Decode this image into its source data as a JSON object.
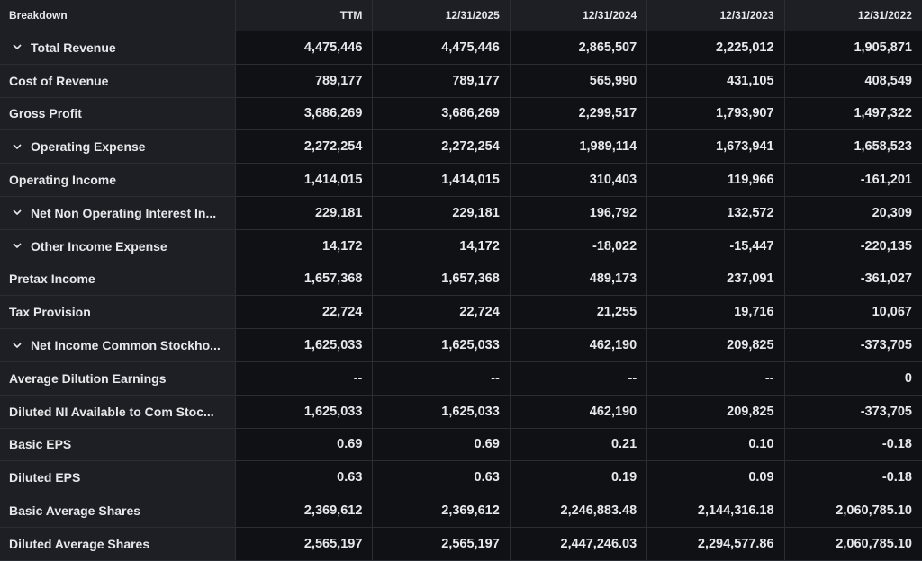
{
  "header": {
    "breakdown": "Breakdown",
    "columns": [
      "TTM",
      "12/31/2025",
      "12/31/2024",
      "12/31/2023",
      "12/31/2022"
    ]
  },
  "rows": [
    {
      "label": "Total Revenue",
      "expandable": true,
      "values": [
        "4,475,446",
        "4,475,446",
        "2,865,507",
        "2,225,012",
        "1,905,871"
      ]
    },
    {
      "label": "Cost of Revenue",
      "expandable": false,
      "values": [
        "789,177",
        "789,177",
        "565,990",
        "431,105",
        "408,549"
      ]
    },
    {
      "label": "Gross Profit",
      "expandable": false,
      "values": [
        "3,686,269",
        "3,686,269",
        "2,299,517",
        "1,793,907",
        "1,497,322"
      ]
    },
    {
      "label": "Operating Expense",
      "expandable": true,
      "values": [
        "2,272,254",
        "2,272,254",
        "1,989,114",
        "1,673,941",
        "1,658,523"
      ]
    },
    {
      "label": "Operating Income",
      "expandable": false,
      "values": [
        "1,414,015",
        "1,414,015",
        "310,403",
        "119,966",
        "-161,201"
      ]
    },
    {
      "label": "Net Non Operating Interest In...",
      "expandable": true,
      "values": [
        "229,181",
        "229,181",
        "196,792",
        "132,572",
        "20,309"
      ]
    },
    {
      "label": "Other Income Expense",
      "expandable": true,
      "values": [
        "14,172",
        "14,172",
        "-18,022",
        "-15,447",
        "-220,135"
      ]
    },
    {
      "label": "Pretax Income",
      "expandable": false,
      "values": [
        "1,657,368",
        "1,657,368",
        "489,173",
        "237,091",
        "-361,027"
      ]
    },
    {
      "label": "Tax Provision",
      "expandable": false,
      "values": [
        "22,724",
        "22,724",
        "21,255",
        "19,716",
        "10,067"
      ]
    },
    {
      "label": "Net Income Common Stockho...",
      "expandable": true,
      "values": [
        "1,625,033",
        "1,625,033",
        "462,190",
        "209,825",
        "-373,705"
      ]
    },
    {
      "label": "Average Dilution Earnings",
      "expandable": false,
      "values": [
        "--",
        "--",
        "--",
        "--",
        "0"
      ]
    },
    {
      "label": "Diluted NI Available to Com Stoc...",
      "expandable": false,
      "values": [
        "1,625,033",
        "1,625,033",
        "462,190",
        "209,825",
        "-373,705"
      ]
    },
    {
      "label": "Basic EPS",
      "expandable": false,
      "values": [
        "0.69",
        "0.69",
        "0.21",
        "0.10",
        "-0.18"
      ]
    },
    {
      "label": "Diluted EPS",
      "expandable": false,
      "values": [
        "0.63",
        "0.63",
        "0.19",
        "0.09",
        "-0.18"
      ]
    },
    {
      "label": "Basic Average Shares",
      "expandable": false,
      "values": [
        "2,369,612",
        "2,369,612",
        "2,246,883.48",
        "2,144,316.18",
        "2,060,785.10"
      ]
    },
    {
      "label": "Diluted Average Shares",
      "expandable": false,
      "values": [
        "2,565,197",
        "2,565,197",
        "2,447,246.03",
        "2,294,577.86",
        "2,060,785.10"
      ]
    }
  ]
}
